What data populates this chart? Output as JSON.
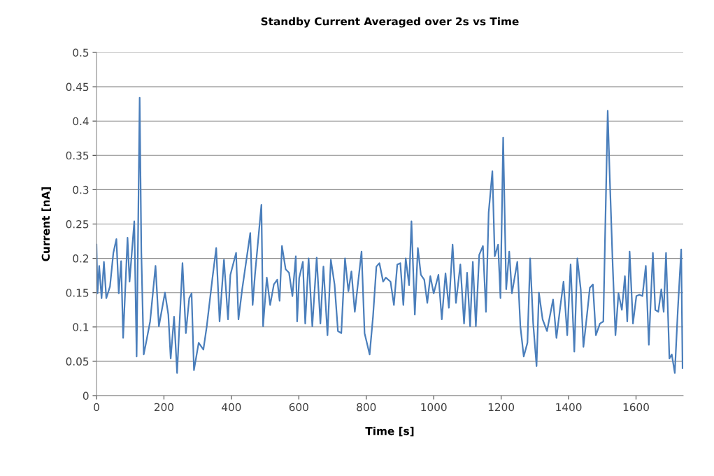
{
  "chart_data": {
    "type": "line",
    "title": "Standby Current Averaged over 2s vs Time",
    "xlabel": "Time [s]",
    "ylabel": "Current [nA]",
    "xlim": [
      0,
      1740
    ],
    "xticks": [
      0,
      200,
      400,
      600,
      800,
      1000,
      1200,
      1400,
      1600
    ],
    "ylim": [
      0,
      0.5
    ],
    "yticks": [
      0,
      0.05,
      0.1,
      0.15,
      0.2,
      0.25,
      0.3,
      0.35,
      0.4,
      0.45,
      0.5
    ],
    "grid": "y",
    "marker": "none",
    "line_style": "solid",
    "x": [
      0,
      3,
      8,
      15,
      22,
      29,
      40,
      50,
      59,
      66,
      73,
      79,
      92,
      98,
      112,
      119,
      128,
      133,
      140,
      147,
      159,
      175,
      185,
      203,
      213,
      220,
      230,
      239,
      255,
      265,
      275,
      282,
      289,
      303,
      317,
      327,
      344,
      355,
      365,
      378,
      390,
      397,
      414,
      421,
      432,
      456,
      463,
      470,
      489,
      494,
      505,
      515,
      526,
      536,
      543,
      550,
      561,
      571,
      581,
      591,
      595,
      601,
      612,
      619,
      629,
      640,
      653,
      664,
      673,
      685,
      695,
      706,
      716,
      726,
      737,
      747,
      756,
      766,
      786,
      795,
      810,
      820,
      830,
      839,
      850,
      858,
      872,
      882,
      892,
      901,
      910,
      917,
      927,
      934,
      944,
      953,
      962,
      972,
      981,
      990,
      1000,
      1014,
      1024,
      1035,
      1045,
      1056,
      1066,
      1079,
      1090,
      1099,
      1108,
      1116,
      1125,
      1135,
      1146,
      1155,
      1163,
      1174,
      1181,
      1191,
      1198,
      1206,
      1215,
      1224,
      1232,
      1248,
      1257,
      1267,
      1278,
      1286,
      1295,
      1305,
      1312,
      1323,
      1336,
      1354,
      1364,
      1375,
      1385,
      1396,
      1406,
      1417,
      1426,
      1436,
      1444,
      1454,
      1463,
      1472,
      1481,
      1493,
      1503,
      1516,
      1522,
      1531,
      1539,
      1548,
      1558,
      1567,
      1574,
      1581,
      1591,
      1601,
      1610,
      1619,
      1629,
      1638,
      1650,
      1657,
      1666,
      1675,
      1682,
      1689,
      1699,
      1706,
      1715,
      1724,
      1734,
      1738
    ],
    "series": [
      {
        "color": "#4a7ebb",
        "values": [
          0.22,
          0.149,
          0.189,
          0.142,
          0.195,
          0.142,
          0.159,
          0.208,
          0.228,
          0.149,
          0.196,
          0.084,
          0.23,
          0.166,
          0.254,
          0.057,
          0.434,
          0.208,
          0.06,
          0.077,
          0.108,
          0.189,
          0.101,
          0.15,
          0.118,
          0.054,
          0.115,
          0.033,
          0.193,
          0.091,
          0.142,
          0.149,
          0.037,
          0.077,
          0.067,
          0.101,
          0.172,
          0.215,
          0.108,
          0.198,
          0.111,
          0.176,
          0.208,
          0.111,
          0.155,
          0.237,
          0.132,
          0.176,
          0.278,
          0.101,
          0.172,
          0.132,
          0.162,
          0.169,
          0.138,
          0.218,
          0.184,
          0.179,
          0.145,
          0.203,
          0.108,
          0.171,
          0.195,
          0.105,
          0.2,
          0.101,
          0.201,
          0.105,
          0.188,
          0.088,
          0.198,
          0.162,
          0.094,
          0.091,
          0.2,
          0.152,
          0.181,
          0.122,
          0.21,
          0.091,
          0.06,
          0.115,
          0.188,
          0.193,
          0.166,
          0.172,
          0.166,
          0.132,
          0.191,
          0.193,
          0.132,
          0.2,
          0.161,
          0.254,
          0.118,
          0.215,
          0.176,
          0.169,
          0.135,
          0.174,
          0.149,
          0.176,
          0.111,
          0.178,
          0.128,
          0.22,
          0.135,
          0.191,
          0.105,
          0.179,
          0.101,
          0.195,
          0.101,
          0.205,
          0.218,
          0.122,
          0.267,
          0.327,
          0.203,
          0.22,
          0.142,
          0.376,
          0.155,
          0.21,
          0.149,
          0.195,
          0.101,
          0.057,
          0.077,
          0.2,
          0.105,
          0.043,
          0.15,
          0.111,
          0.094,
          0.14,
          0.084,
          0.128,
          0.166,
          0.088,
          0.191,
          0.064,
          0.2,
          0.155,
          0.071,
          0.115,
          0.157,
          0.162,
          0.088,
          0.105,
          0.108,
          0.415,
          0.32,
          0.188,
          0.088,
          0.149,
          0.125,
          0.174,
          0.108,
          0.21,
          0.105,
          0.145,
          0.147,
          0.145,
          0.189,
          0.074,
          0.208,
          0.125,
          0.122,
          0.155,
          0.122,
          0.208,
          0.054,
          0.06,
          0.033,
          0.125,
          0.213,
          0.04
        ]
      }
    ]
  }
}
